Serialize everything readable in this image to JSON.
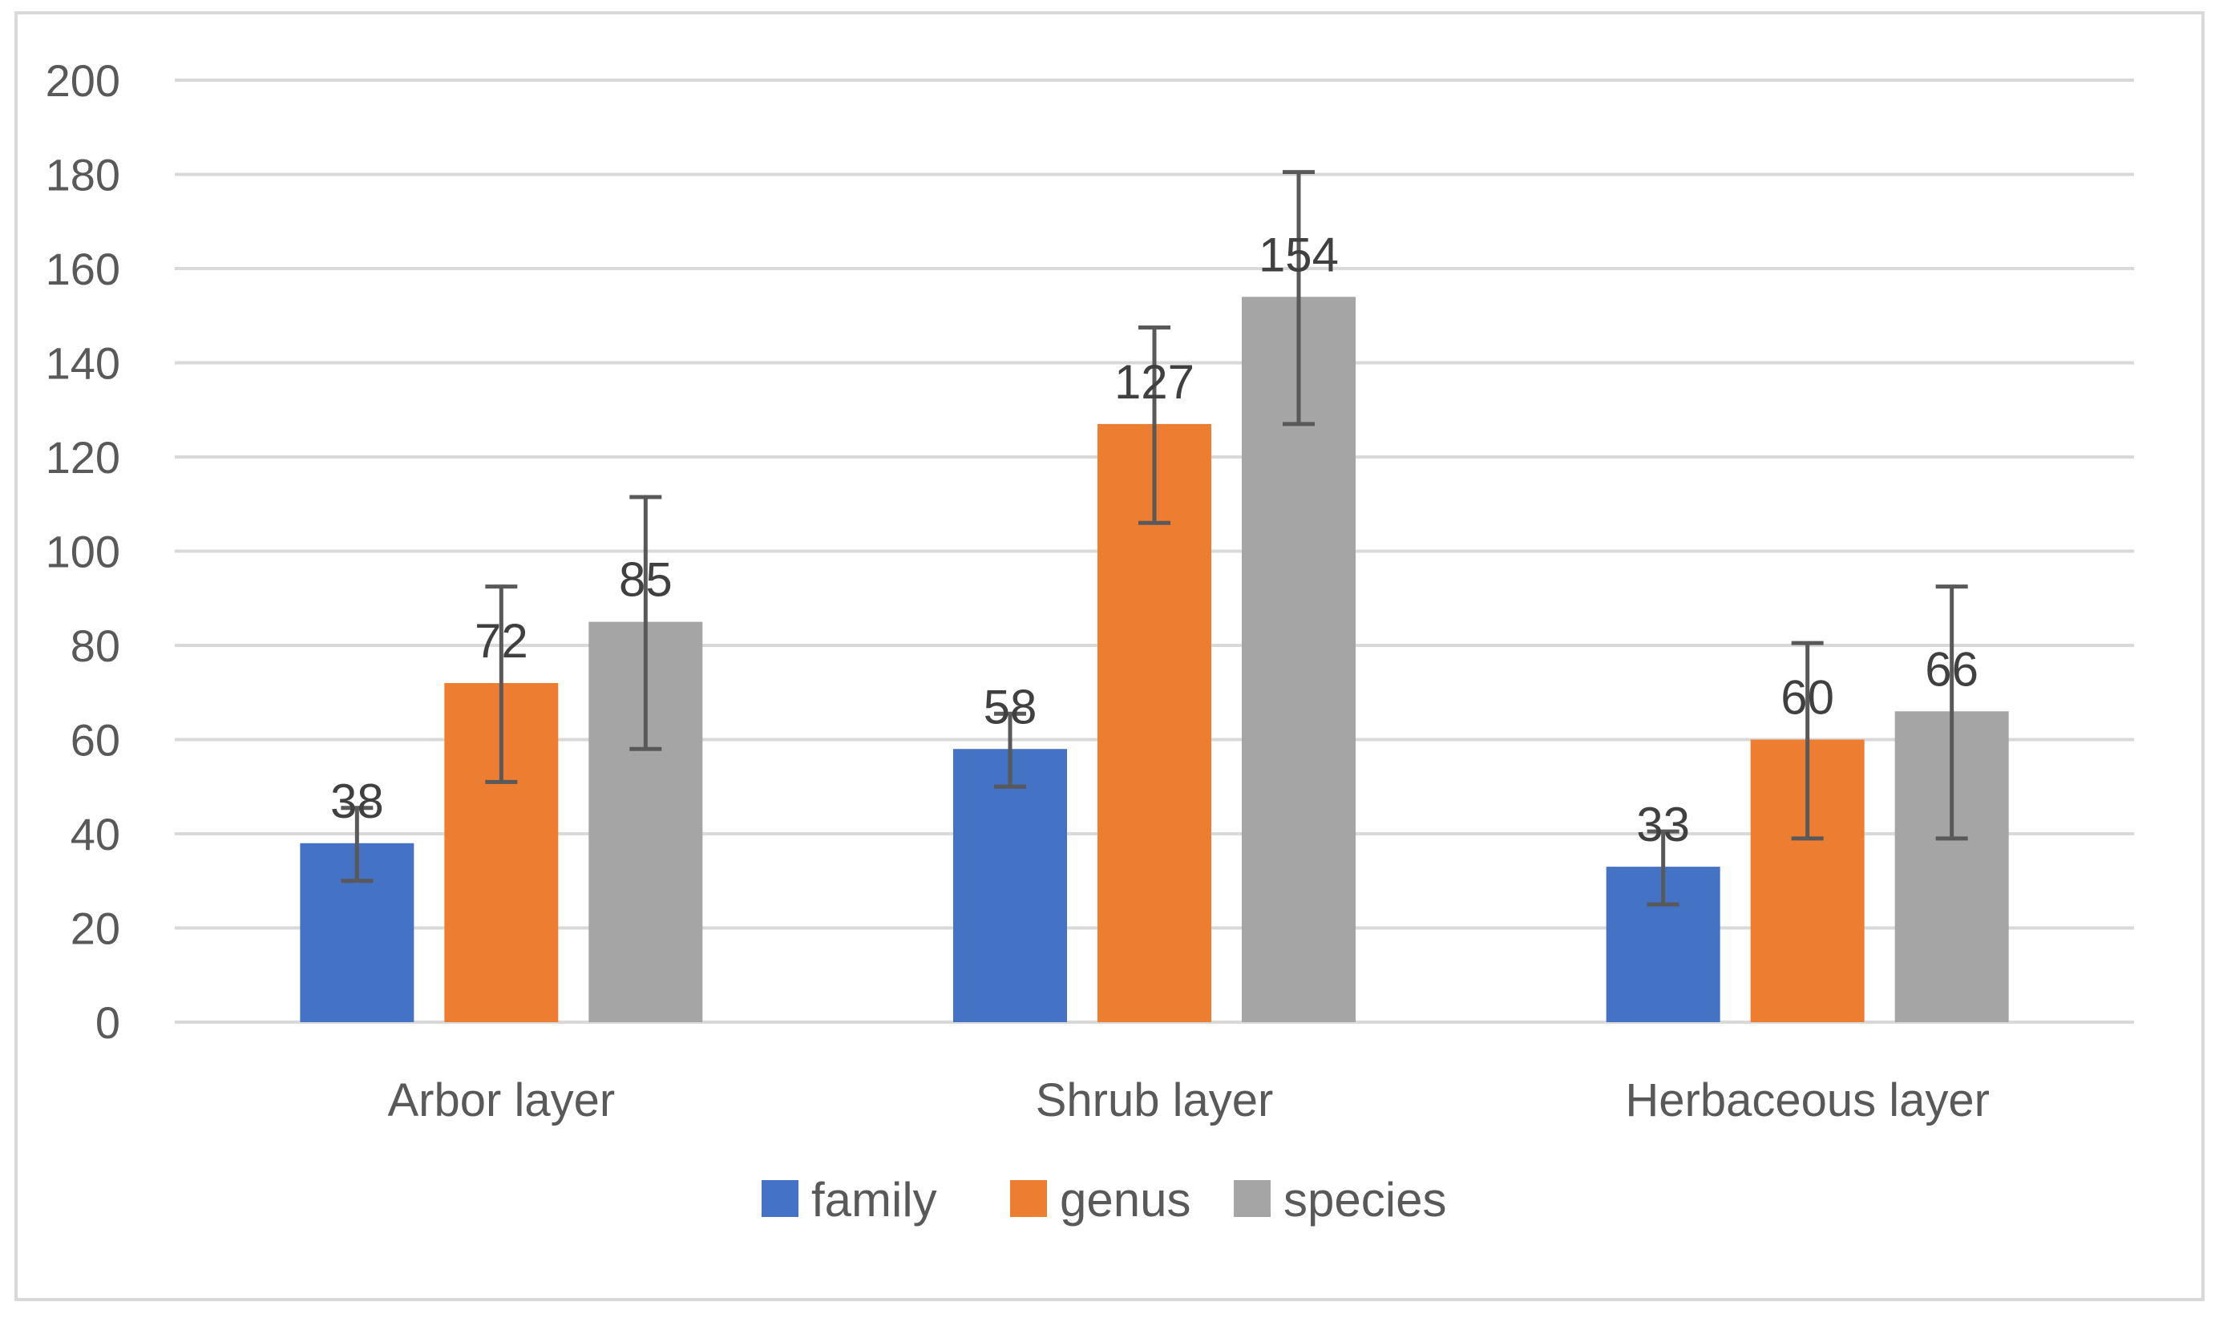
{
  "chart_data": {
    "type": "bar",
    "title": "",
    "xlabel": "",
    "ylabel": "",
    "categories": [
      "Arbor layer",
      "Shrub layer",
      "Herbaceous layer"
    ],
    "ylim": [
      0,
      200
    ],
    "yticks": [
      0,
      20,
      40,
      60,
      80,
      100,
      120,
      140,
      160,
      180,
      200
    ],
    "grid": true,
    "legend_position": "bottom",
    "series": [
      {
        "name": "family",
        "color": "#4472C4",
        "values": [
          38,
          58,
          33
        ],
        "error_low": [
          30,
          50,
          25
        ],
        "error_high": [
          45.5,
          65.5,
          40.5
        ]
      },
      {
        "name": "genus",
        "color": "#ED7D31",
        "values": [
          72,
          127,
          60
        ],
        "error_low": [
          51,
          106,
          39
        ],
        "error_high": [
          92.5,
          147.5,
          80.5
        ]
      },
      {
        "name": "species",
        "color": "#A5A5A5",
        "values": [
          85,
          154,
          66
        ],
        "error_low": [
          58,
          127,
          39
        ],
        "error_high": [
          111.5,
          180.5,
          92.5
        ]
      }
    ],
    "data_labels": [
      [
        "38",
        "58",
        "33"
      ],
      [
        "72",
        "127",
        "60"
      ],
      [
        "85",
        "154",
        "66"
      ]
    ]
  },
  "colors": {
    "border": "#D9D9D9",
    "gridline": "#D9D9D9",
    "text": "#595959",
    "label_text": "#404040",
    "error_bar": "#595959"
  }
}
